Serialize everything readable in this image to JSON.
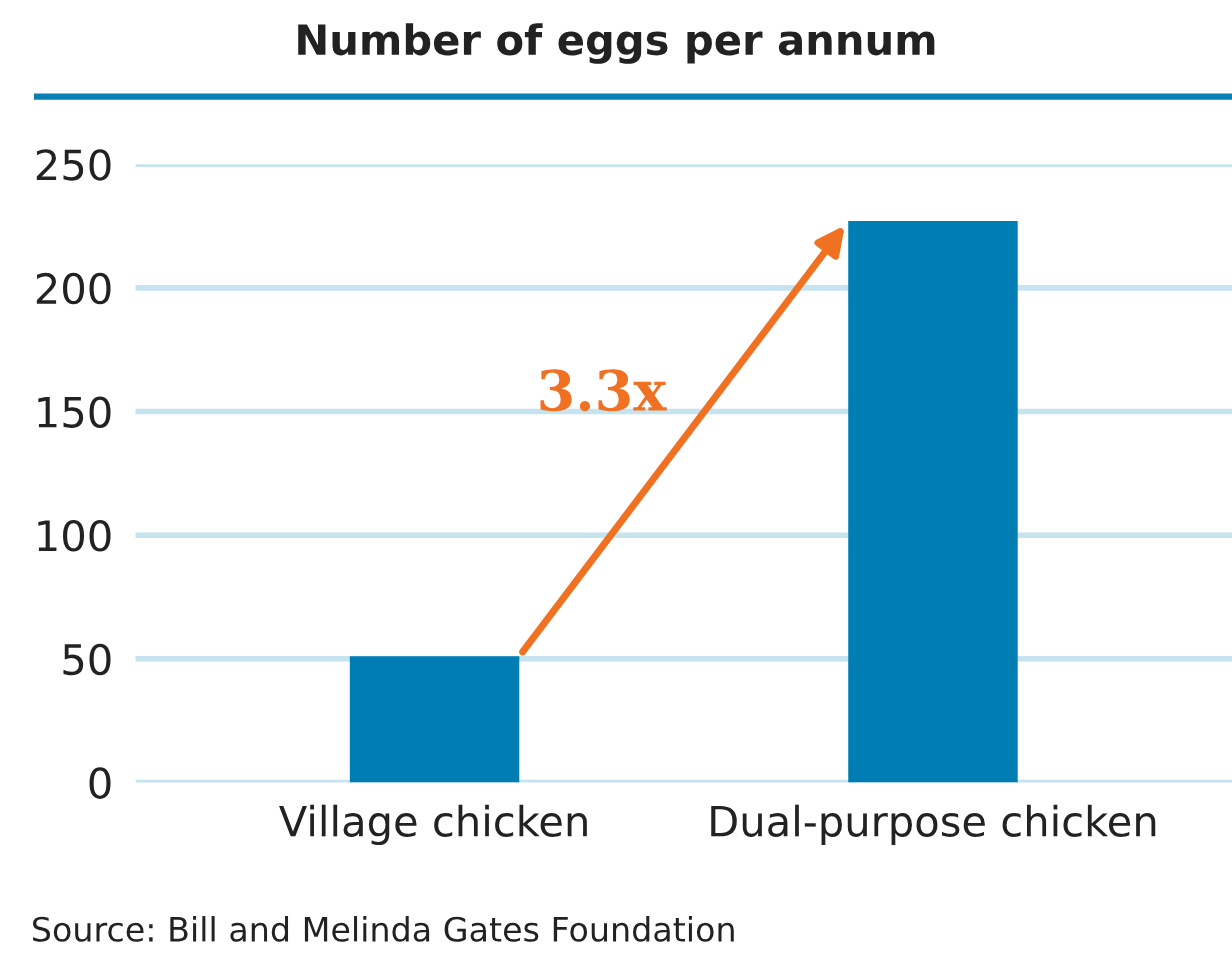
{
  "chart_data": {
    "type": "bar",
    "title": "Number of eggs per annum",
    "categories": [
      "Village chicken",
      "Dual-purpose chicken"
    ],
    "values": [
      51,
      227
    ],
    "color": "#007db3",
    "ylim": [
      0,
      250
    ],
    "yticks": [
      0,
      50,
      100,
      150,
      200,
      250
    ],
    "grid": "y",
    "annotations": [
      "3.3x",
      "Source: Bill and Melinda Gates Foundation"
    ]
  }
}
